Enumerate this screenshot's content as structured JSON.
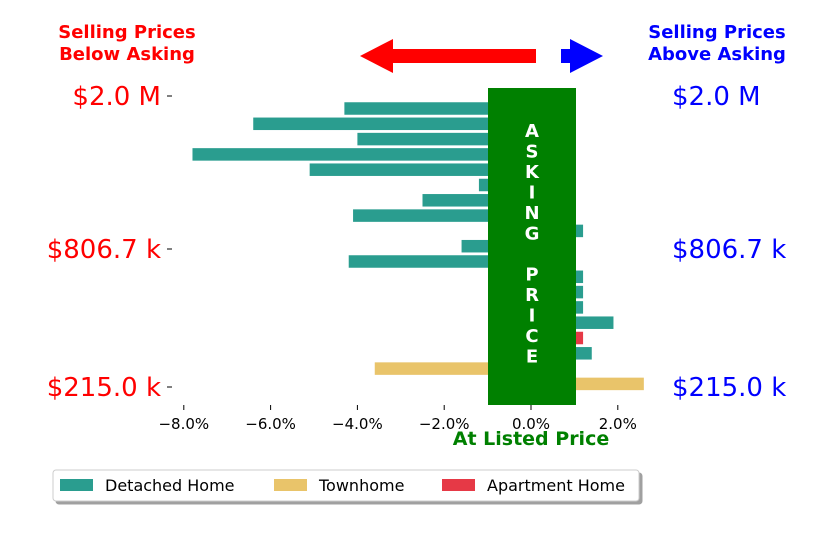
{
  "header": {
    "below_line1": "Selling Prices",
    "below_line2": "Below Asking",
    "above_line1": "Selling Prices",
    "above_line2": "Above Asking"
  },
  "colors": {
    "below": "#ff0000",
    "above": "#0000ff",
    "detached": "#2a9d8f",
    "townhome": "#e9c46a",
    "apartment": "#e63946",
    "asking_band": "#008000"
  },
  "asking_band": {
    "letters": [
      "A",
      "S",
      "K",
      "I",
      "N",
      "G",
      "",
      "P",
      "R",
      "I",
      "C",
      "E"
    ]
  },
  "price_labels": [
    {
      "value": "$2.0 M",
      "pos": 0
    },
    {
      "value": "$806.7 k",
      "pos": 1
    },
    {
      "value": "$215.0 k",
      "pos": 2
    }
  ],
  "chart_data": {
    "type": "bar",
    "orientation": "horizontal",
    "xlabel": "At Listed Price",
    "xlim": [
      -8.5,
      2.5
    ],
    "xticks": [
      {
        "v": -8,
        "label": "−8.0%"
      },
      {
        "v": -6,
        "label": "−6.0%"
      },
      {
        "v": -4,
        "label": "−4.0%"
      },
      {
        "v": -2,
        "label": "−2.0%"
      },
      {
        "v": 0,
        "label": "0.0%"
      },
      {
        "v": 2,
        "label": "2.0%"
      }
    ],
    "legend": {
      "placement": "bottom",
      "entries": [
        {
          "name": "Detached Home",
          "key": "detached"
        },
        {
          "name": "Townhome",
          "key": "townhome"
        },
        {
          "name": "Apartment Home",
          "key": "apartment"
        }
      ]
    },
    "bars": [
      {
        "value": -4.3,
        "type": "detached"
      },
      {
        "value": -6.4,
        "type": "detached"
      },
      {
        "value": -4.0,
        "type": "detached"
      },
      {
        "value": -7.8,
        "type": "detached"
      },
      {
        "value": -5.1,
        "type": "detached"
      },
      {
        "value": -1.2,
        "type": "detached"
      },
      {
        "value": -2.5,
        "type": "detached"
      },
      {
        "value": -4.1,
        "type": "detached"
      },
      {
        "value": 1.2,
        "type": "detached"
      },
      {
        "value": -1.6,
        "type": "detached"
      },
      {
        "value": -4.2,
        "type": "detached"
      },
      {
        "value": 1.2,
        "type": "detached"
      },
      {
        "value": 1.2,
        "type": "detached"
      },
      {
        "value": 1.2,
        "type": "detached"
      },
      {
        "value": 1.9,
        "type": "detached"
      },
      {
        "value": 1.2,
        "type": "apartment"
      },
      {
        "value": 1.4,
        "type": "detached"
      },
      {
        "value": -3.6,
        "type": "townhome"
      },
      {
        "value": 2.6,
        "type": "townhome"
      }
    ]
  }
}
